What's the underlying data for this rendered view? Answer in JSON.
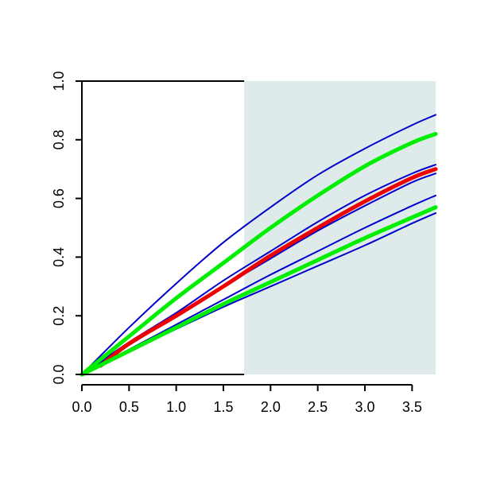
{
  "chart_data": {
    "type": "line",
    "title": "",
    "xlabel": "",
    "ylabel": "",
    "xlim": [
      0,
      3.75
    ],
    "ylim": [
      0,
      1.0
    ],
    "x_ticks": [
      0.0,
      0.5,
      1.0,
      1.5,
      2.0,
      2.5,
      3.0,
      3.5
    ],
    "x_tick_labels": [
      "0.0",
      "0.5",
      "1.0",
      "1.5",
      "2.0",
      "2.5",
      "3.0",
      "3.5"
    ],
    "y_ticks": [
      0.0,
      0.2,
      0.4,
      0.6,
      0.8,
      1.0
    ],
    "y_tick_labels": [
      "0.0",
      "0.2",
      "0.4",
      "0.6",
      "0.8",
      "1.0"
    ],
    "grid": false,
    "legend": "none",
    "shaded_region": {
      "x_from": 1.72,
      "x_to": 3.75,
      "color": "#deebea"
    },
    "series": [
      {
        "color": "#0000cc",
        "weight": "thin",
        "x": [
          0,
          0.5,
          1.0,
          1.5,
          2.0,
          2.5,
          3.0,
          3.5,
          3.75
        ],
        "y": [
          0,
          0.16,
          0.31,
          0.45,
          0.57,
          0.68,
          0.77,
          0.85,
          0.885
        ]
      },
      {
        "color": "#00ee00",
        "weight": "thick",
        "x": [
          0,
          0.5,
          1.0,
          1.5,
          2.0,
          2.5,
          3.0,
          3.5,
          3.75
        ],
        "y": [
          0,
          0.13,
          0.26,
          0.38,
          0.5,
          0.61,
          0.71,
          0.79,
          0.82
        ]
      },
      {
        "color": "#0000cc",
        "weight": "thin",
        "x": [
          0,
          0.5,
          1.0,
          1.5,
          2.0,
          2.5,
          3.0,
          3.5,
          3.75
        ],
        "y": [
          0,
          0.11,
          0.21,
          0.32,
          0.42,
          0.52,
          0.61,
          0.685,
          0.715
        ]
      },
      {
        "color": "#ee0000",
        "weight": "thick",
        "x": [
          0.2,
          0.5,
          1.0,
          1.5,
          2.0,
          2.5,
          3.0,
          3.5,
          3.75
        ],
        "y": [
          0.03,
          0.105,
          0.2,
          0.3,
          0.405,
          0.5,
          0.59,
          0.67,
          0.7
        ]
      },
      {
        "color": "#0000cc",
        "weight": "thin",
        "x": [
          0,
          0.5,
          1.0,
          1.5,
          2.0,
          2.5,
          3.0,
          3.5,
          3.75
        ],
        "y": [
          0,
          0.1,
          0.2,
          0.3,
          0.395,
          0.49,
          0.575,
          0.655,
          0.685
        ]
      },
      {
        "color": "#0000cc",
        "weight": "thin",
        "x": [
          0,
          0.5,
          1.0,
          1.5,
          2.0,
          2.5,
          3.0,
          3.5,
          3.75
        ],
        "y": [
          0,
          0.085,
          0.17,
          0.255,
          0.34,
          0.42,
          0.5,
          0.575,
          0.61
        ]
      },
      {
        "color": "#00ee00",
        "weight": "thick",
        "x": [
          0,
          0.5,
          1.0,
          1.5,
          2.0,
          2.5,
          3.0,
          3.5,
          3.75
        ],
        "y": [
          0,
          0.08,
          0.16,
          0.24,
          0.315,
          0.39,
          0.465,
          0.535,
          0.57
        ]
      },
      {
        "color": "#0000cc",
        "weight": "thin",
        "x": [
          0,
          0.5,
          1.0,
          1.5,
          2.0,
          2.5,
          3.0,
          3.5,
          3.75
        ],
        "y": [
          0,
          0.08,
          0.155,
          0.23,
          0.3,
          0.37,
          0.44,
          0.515,
          0.55
        ]
      }
    ]
  }
}
